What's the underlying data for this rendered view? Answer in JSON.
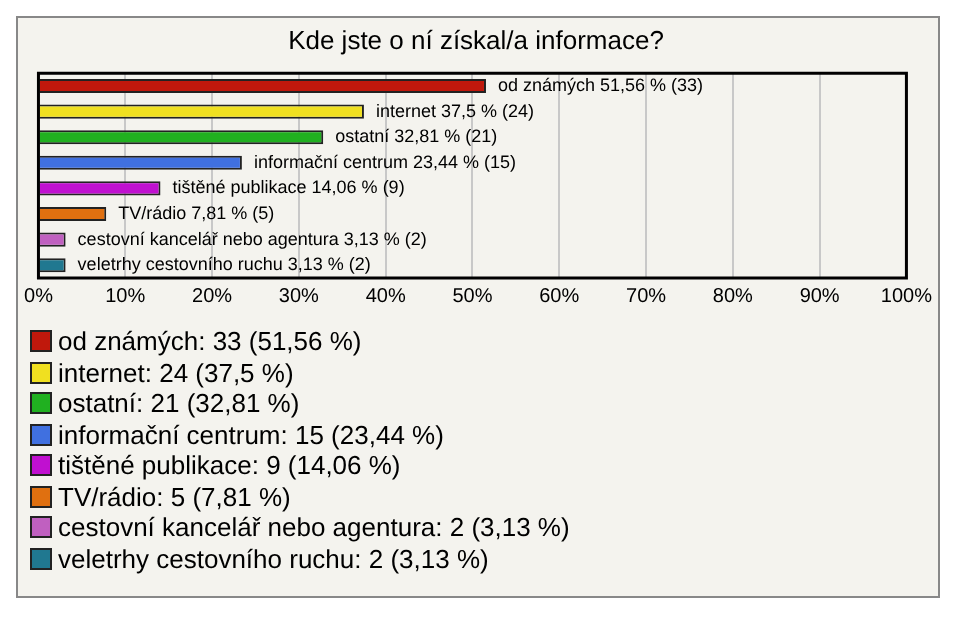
{
  "chart_data": {
    "type": "bar",
    "orientation": "horizontal",
    "title": "Kde jste o ní získal/a informace?",
    "categories": [
      null,
      null,
      null,
      null,
      null,
      null,
      null,
      null
    ],
    "series": [
      {
        "name": "od známých: 33 (51,56 %)",
        "color": "#c0180c",
        "values": [
          51.56,
          null,
          null,
          null,
          null,
          null,
          null,
          null
        ],
        "value_labels": [
          "od známých 51,56 % (33)",
          null,
          null,
          null,
          null,
          null,
          null,
          null
        ]
      },
      {
        "name": "internet: 24 (37,5 %)",
        "color": "#f0e020",
        "values": [
          null,
          37.5,
          null,
          null,
          null,
          null,
          null,
          null
        ],
        "value_labels": [
          null,
          "internet 37,5 % (24)",
          null,
          null,
          null,
          null,
          null,
          null
        ]
      },
      {
        "name": "ostatní: 21 (32,81 %)",
        "color": "#20b020",
        "values": [
          null,
          null,
          32.81,
          null,
          null,
          null,
          null,
          null
        ],
        "value_labels": [
          null,
          null,
          "ostatní 32,81 % (21)",
          null,
          null,
          null,
          null,
          null
        ]
      },
      {
        "name": "informační centrum: 15 (23,44 %)",
        "color": "#4070e0",
        "values": [
          null,
          null,
          null,
          23.44,
          null,
          null,
          null,
          null
        ],
        "value_labels": [
          null,
          null,
          null,
          "informační centrum 23,44 % (15)",
          null,
          null,
          null,
          null
        ]
      },
      {
        "name": "tištěné publikace: 9 (14,06 %)",
        "color": "#c010d0",
        "values": [
          null,
          null,
          null,
          null,
          14.06,
          null,
          null,
          null
        ],
        "value_labels": [
          null,
          null,
          null,
          null,
          "tištěné publikace 14,06 % (9)",
          null,
          null,
          null
        ]
      },
      {
        "name": "TV/rádio: 5 (7,81 %)",
        "color": "#e07010",
        "values": [
          null,
          null,
          null,
          null,
          null,
          7.81,
          null,
          null
        ],
        "value_labels": [
          null,
          null,
          null,
          null,
          null,
          "TV/rádio 7,81 % (5)",
          null,
          null
        ]
      },
      {
        "name": "cestovní kancelář nebo agentura: 2 (3,13 %)",
        "color": "#c060c0",
        "values": [
          null,
          null,
          null,
          null,
          null,
          null,
          3.13,
          null
        ],
        "value_labels": [
          null,
          null,
          null,
          null,
          null,
          null,
          "cestovní kancelář nebo agentura 3,13 % (2)",
          null
        ]
      },
      {
        "name": "veletrhy cestovního ruchu: 2 (3,13 %)",
        "color": "#207890",
        "values": [
          null,
          null,
          null,
          null,
          null,
          null,
          null,
          3.13
        ],
        "value_labels": [
          null,
          null,
          null,
          null,
          null,
          null,
          null,
          "veletrhy cestovního ruchu 3,13 % (2)"
        ]
      }
    ],
    "xlim": [
      0,
      100
    ],
    "xticks": [
      {
        "value": 0,
        "label": "0%"
      },
      {
        "value": 10,
        "label": "10%"
      },
      {
        "value": 20,
        "label": "20%"
      },
      {
        "value": 30,
        "label": "30%"
      },
      {
        "value": 40,
        "label": "40%"
      },
      {
        "value": 50,
        "label": "50%"
      },
      {
        "value": 60,
        "label": "60%"
      },
      {
        "value": 70,
        "label": "70%"
      },
      {
        "value": 80,
        "label": "80%"
      },
      {
        "value": 90,
        "label": "90%"
      },
      {
        "value": 100,
        "label": "100%"
      }
    ],
    "tick_labels": "x",
    "grid": "x",
    "legend": "bottom"
  }
}
